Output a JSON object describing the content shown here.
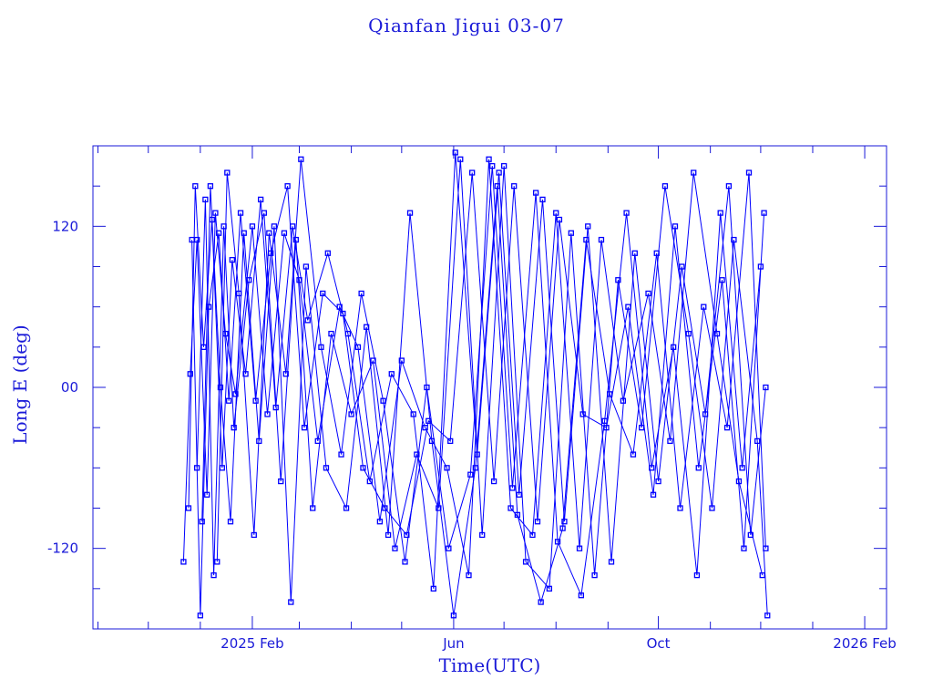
{
  "chart_data": {
    "type": "line",
    "title": "Qianfan Jigui 03-07",
    "xlabel": "Time(UTC)",
    "ylabel": "Long E (deg)",
    "xlim": [
      "2024-10-29",
      "2026-02-14"
    ],
    "ylim": [
      -180,
      180
    ],
    "xticks": [
      {
        "date": "2025-02-01",
        "label": "2025 Feb"
      },
      {
        "date": "2025-06-01",
        "label": "Jun"
      },
      {
        "date": "2025-10-01",
        "label": "Oct"
      },
      {
        "date": "2026-02-01",
        "label": "2026 Feb"
      }
    ],
    "yticks": [
      {
        "value": 120,
        "label": "120"
      },
      {
        "value": 0,
        "label": "00"
      },
      {
        "value": -120,
        "label": "-120"
      }
    ],
    "color": "#0000ff",
    "marker": "square",
    "series": [
      {
        "points": [
          [
            "2024-12-22",
            -130
          ],
          [
            "2024-12-26",
            10
          ],
          [
            "2024-12-30",
            110
          ],
          [
            "2025-01-05",
            -80
          ],
          [
            "2025-01-10",
            130
          ],
          [
            "2025-01-16",
            40
          ],
          [
            "2025-01-22",
            -5
          ],
          [
            "2025-02-01",
            120
          ],
          [
            "2025-02-10",
            -20
          ],
          [
            "2025-02-20",
            115
          ],
          [
            "2025-03-01",
            80
          ],
          [
            "2025-03-12",
            -40
          ],
          [
            "2025-03-25",
            60
          ],
          [
            "2025-04-05",
            30
          ],
          [
            "2025-04-18",
            -100
          ],
          [
            "2025-05-01",
            20
          ],
          [
            "2025-05-15",
            -30
          ],
          [
            "2025-05-28",
            -60
          ],
          [
            "2025-06-10",
            -140
          ],
          [
            "2025-06-22",
            170
          ],
          [
            "2025-07-05",
            -90
          ],
          [
            "2025-07-18",
            -110
          ],
          [
            "2025-08-01",
            130
          ],
          [
            "2025-08-15",
            -120
          ],
          [
            "2025-08-28",
            110
          ],
          [
            "2025-09-10",
            -10
          ],
          [
            "2025-09-25",
            70
          ],
          [
            "2025-10-08",
            -40
          ],
          [
            "2025-10-22",
            160
          ],
          [
            "2025-11-05",
            40
          ],
          [
            "2025-11-18",
            -70
          ],
          [
            "2025-12-02",
            -140
          ]
        ]
      },
      {
        "points": [
          [
            "2024-12-25",
            -90
          ],
          [
            "2024-12-29",
            150
          ],
          [
            "2025-01-03",
            30
          ],
          [
            "2025-01-08",
            125
          ],
          [
            "2025-01-14",
            -60
          ],
          [
            "2025-01-20",
            95
          ],
          [
            "2025-01-28",
            10
          ],
          [
            "2025-02-06",
            140
          ],
          [
            "2025-02-15",
            -15
          ],
          [
            "2025-02-25",
            120
          ],
          [
            "2025-03-06",
            50
          ],
          [
            "2025-03-18",
            100
          ],
          [
            "2025-03-30",
            40
          ],
          [
            "2025-04-12",
            -70
          ],
          [
            "2025-04-25",
            10
          ],
          [
            "2025-05-08",
            -20
          ],
          [
            "2025-05-20",
            -150
          ],
          [
            "2025-06-02",
            175
          ],
          [
            "2025-06-15",
            -50
          ],
          [
            "2025-06-28",
            160
          ],
          [
            "2025-07-10",
            -80
          ],
          [
            "2025-07-24",
            140
          ],
          [
            "2025-08-06",
            -100
          ],
          [
            "2025-08-20",
            120
          ],
          [
            "2025-09-03",
            -130
          ],
          [
            "2025-09-17",
            100
          ],
          [
            "2025-10-01",
            -70
          ],
          [
            "2025-10-15",
            90
          ],
          [
            "2025-10-29",
            -20
          ],
          [
            "2025-11-12",
            150
          ],
          [
            "2025-11-25",
            -110
          ],
          [
            "2025-12-04",
            0
          ]
        ]
      },
      {
        "points": [
          [
            "2024-12-27",
            110
          ],
          [
            "2025-01-01",
            -170
          ],
          [
            "2025-01-06",
            60
          ],
          [
            "2025-01-12",
            115
          ],
          [
            "2025-01-18",
            -10
          ],
          [
            "2025-01-25",
            130
          ],
          [
            "2025-02-03",
            -10
          ],
          [
            "2025-02-12",
            100
          ],
          [
            "2025-02-22",
            150
          ],
          [
            "2025-03-04",
            -30
          ],
          [
            "2025-03-15",
            70
          ],
          [
            "2025-03-27",
            55
          ],
          [
            "2025-04-08",
            -60
          ],
          [
            "2025-04-21",
            -90
          ],
          [
            "2025-05-04",
            -110
          ],
          [
            "2025-05-17",
            -25
          ],
          [
            "2025-05-30",
            -40
          ],
          [
            "2025-06-12",
            160
          ],
          [
            "2025-06-25",
            -70
          ],
          [
            "2025-07-07",
            150
          ],
          [
            "2025-07-21",
            -100
          ],
          [
            "2025-08-03",
            125
          ],
          [
            "2025-08-17",
            -20
          ],
          [
            "2025-08-31",
            -30
          ],
          [
            "2025-09-13",
            60
          ],
          [
            "2025-09-28",
            -80
          ],
          [
            "2025-10-11",
            120
          ],
          [
            "2025-10-25",
            -60
          ],
          [
            "2025-11-08",
            80
          ],
          [
            "2025-11-21",
            -120
          ],
          [
            "2025-12-03",
            130
          ]
        ]
      },
      {
        "points": [
          [
            "2024-12-30",
            -60
          ],
          [
            "2025-01-04",
            140
          ],
          [
            "2025-01-09",
            -140
          ],
          [
            "2025-01-15",
            120
          ],
          [
            "2025-01-21",
            -30
          ],
          [
            "2025-01-30",
            80
          ],
          [
            "2025-02-08",
            130
          ],
          [
            "2025-02-18",
            -70
          ],
          [
            "2025-02-27",
            110
          ],
          [
            "2025-03-09",
            -90
          ],
          [
            "2025-03-20",
            40
          ],
          [
            "2025-04-01",
            -20
          ],
          [
            "2025-04-14",
            20
          ],
          [
            "2025-04-27",
            -120
          ],
          [
            "2025-05-10",
            -50
          ],
          [
            "2025-05-23",
            -90
          ],
          [
            "2025-06-05",
            170
          ],
          [
            "2025-06-18",
            -110
          ],
          [
            "2025-07-01",
            165
          ],
          [
            "2025-07-14",
            -130
          ],
          [
            "2025-07-28",
            -150
          ],
          [
            "2025-08-10",
            115
          ],
          [
            "2025-08-24",
            -140
          ],
          [
            "2025-09-07",
            80
          ],
          [
            "2025-09-21",
            -30
          ],
          [
            "2025-10-05",
            150
          ],
          [
            "2025-10-19",
            40
          ],
          [
            "2025-11-02",
            -90
          ],
          [
            "2025-11-15",
            110
          ],
          [
            "2025-11-29",
            -40
          ],
          [
            "2025-12-05",
            -170
          ]
        ]
      },
      {
        "points": [
          [
            "2025-01-02",
            -100
          ],
          [
            "2025-01-07",
            150
          ],
          [
            "2025-01-13",
            0
          ],
          [
            "2025-01-19",
            -100
          ],
          [
            "2025-01-27",
            115
          ],
          [
            "2025-02-05",
            -40
          ],
          [
            "2025-02-14",
            120
          ],
          [
            "2025-02-24",
            -160
          ],
          [
            "2025-03-05",
            90
          ],
          [
            "2025-03-17",
            -60
          ],
          [
            "2025-03-29",
            -90
          ],
          [
            "2025-04-10",
            45
          ],
          [
            "2025-04-23",
            -110
          ],
          [
            "2025-05-06",
            130
          ],
          [
            "2025-05-19",
            -40
          ],
          [
            "2025-06-01",
            -170
          ],
          [
            "2025-06-14",
            -60
          ],
          [
            "2025-06-27",
            150
          ],
          [
            "2025-07-09",
            -95
          ],
          [
            "2025-07-23",
            -160
          ],
          [
            "2025-08-05",
            -105
          ],
          [
            "2025-08-19",
            110
          ],
          [
            "2025-09-02",
            -5
          ],
          [
            "2025-09-16",
            -50
          ],
          [
            "2025-09-30",
            100
          ],
          [
            "2025-10-14",
            -90
          ],
          [
            "2025-10-28",
            60
          ],
          [
            "2025-11-11",
            -30
          ],
          [
            "2025-11-24",
            160
          ],
          [
            "2025-12-04",
            -120
          ]
        ]
      },
      {
        "points": [
          [
            "2025-01-11",
            -130
          ],
          [
            "2025-01-17",
            160
          ],
          [
            "2025-01-24",
            70
          ],
          [
            "2025-02-02",
            -110
          ],
          [
            "2025-02-11",
            115
          ],
          [
            "2025-02-21",
            10
          ],
          [
            "2025-03-02",
            170
          ],
          [
            "2025-03-14",
            30
          ],
          [
            "2025-03-26",
            -50
          ],
          [
            "2025-04-07",
            70
          ],
          [
            "2025-04-20",
            -10
          ],
          [
            "2025-05-03",
            -130
          ],
          [
            "2025-05-16",
            0
          ],
          [
            "2025-05-29",
            -120
          ],
          [
            "2025-06-11",
            -65
          ],
          [
            "2025-06-24",
            165
          ],
          [
            "2025-07-06",
            -75
          ],
          [
            "2025-07-20",
            145
          ],
          [
            "2025-08-02",
            -115
          ],
          [
            "2025-08-16",
            -155
          ],
          [
            "2025-08-30",
            -25
          ],
          [
            "2025-09-12",
            130
          ],
          [
            "2025-09-27",
            -60
          ],
          [
            "2025-10-10",
            30
          ],
          [
            "2025-10-24",
            -140
          ],
          [
            "2025-11-07",
            130
          ],
          [
            "2025-11-20",
            -60
          ],
          [
            "2025-12-01",
            90
          ]
        ]
      }
    ]
  }
}
